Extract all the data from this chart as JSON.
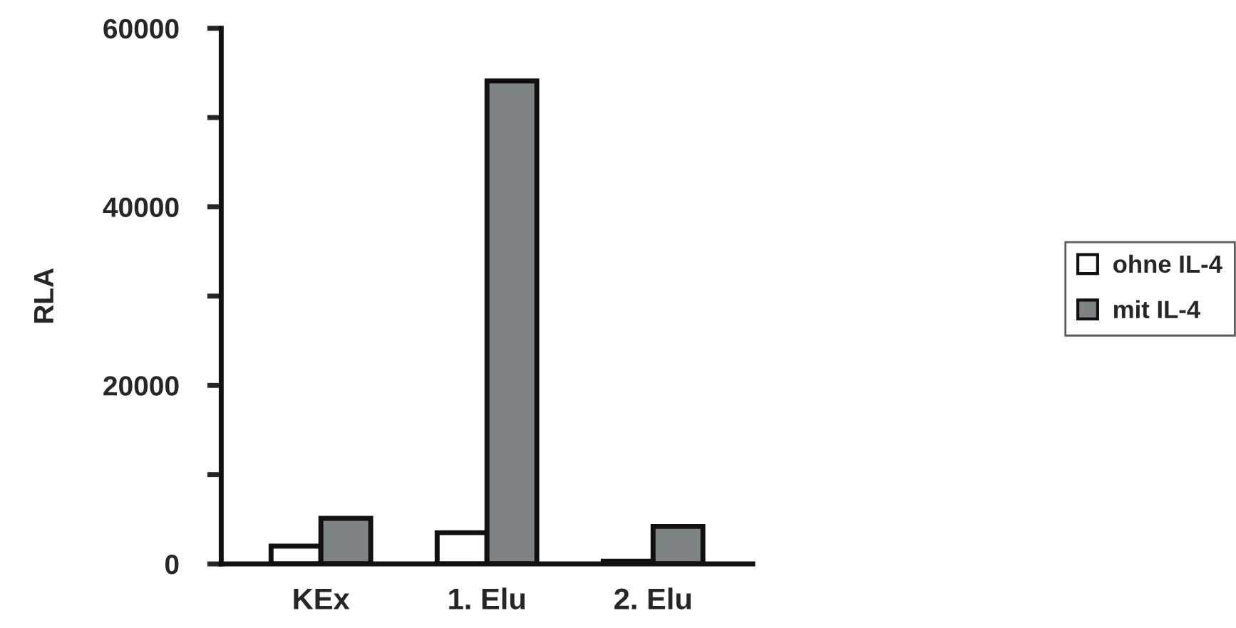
{
  "chart_data": {
    "type": "bar",
    "ylabel": "RLA",
    "categories": [
      "KEx",
      "1. Elu",
      "2. Elu"
    ],
    "series": [
      {
        "name": "ohne IL-4",
        "color": "#ffffff",
        "values": [
          2000,
          3500,
          300
        ]
      },
      {
        "name": "mit IL-4",
        "color": "#7f8587",
        "values": [
          5100,
          54100,
          4200
        ]
      }
    ],
    "ylim": [
      0,
      60000
    ],
    "yticks": [
      0,
      {
        "value": 10000,
        "label": null
      },
      20000,
      {
        "value": 30000,
        "label": null
      },
      40000,
      {
        "value": 50000,
        "label": null
      },
      60000
    ],
    "grid": false,
    "legend": "right"
  }
}
